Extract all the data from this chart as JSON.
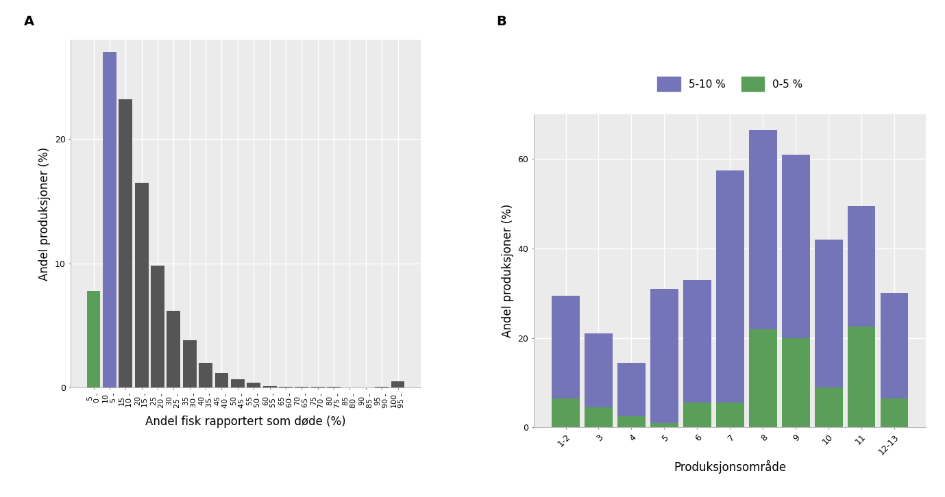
{
  "panel_A": {
    "tick_top": [
      "5",
      "10",
      "15",
      "20",
      "25",
      "30",
      "35",
      "40",
      "45",
      "50",
      "55",
      "60",
      "65",
      "70",
      "75",
      "80",
      "85",
      "90",
      "95",
      "100"
    ],
    "tick_bot": [
      "0 -",
      "5 -",
      "10 -",
      "15 -",
      "20 -",
      "25 -",
      "30 -",
      "35 -",
      "40 -",
      "45 -",
      "50 -",
      "55 -",
      "60 -",
      "65 -",
      "70 -",
      "75 -",
      "80 -",
      "85 -",
      "90 -",
      "95 -"
    ],
    "values": [
      7.8,
      27.0,
      23.2,
      16.5,
      9.8,
      6.2,
      3.8,
      2.0,
      1.2,
      0.7,
      0.4,
      0.15,
      0.07,
      0.05,
      0.05,
      0.05,
      0.0,
      0.0,
      0.05,
      0.5
    ],
    "colors": [
      "#5a9e5a",
      "#7474b8",
      "#555555",
      "#555555",
      "#555555",
      "#555555",
      "#555555",
      "#555555",
      "#555555",
      "#555555",
      "#555555",
      "#555555",
      "#555555",
      "#555555",
      "#555555",
      "#555555",
      "#555555",
      "#555555",
      "#555555",
      "#555555"
    ],
    "ylabel": "Andel produksjoner (%)",
    "xlabel": "Andel fisk rapportert som døde (%)",
    "ylim": [
      0,
      28
    ],
    "yticks": [
      0,
      10,
      20
    ]
  },
  "panel_B": {
    "categories": [
      "1-2",
      "3",
      "4",
      "5",
      "6",
      "7",
      "8",
      "9",
      "10",
      "11",
      "12-13"
    ],
    "values_green": [
      6.5,
      4.5,
      2.5,
      1.0,
      5.5,
      5.5,
      22.0,
      20.0,
      9.0,
      22.5,
      6.5
    ],
    "values_blue": [
      23.0,
      16.5,
      12.0,
      30.0,
      27.5,
      52.0,
      44.5,
      41.0,
      33.0,
      27.0,
      23.5
    ],
    "color_blue": "#7474b8",
    "color_green": "#5a9e5a",
    "ylabel": "Andel produksjoner (%)",
    "xlabel": "Produksjonsområde",
    "ylim": [
      0,
      70
    ],
    "yticks": [
      0,
      20,
      40,
      60
    ],
    "legend_blue": "5-10 %",
    "legend_green": "0-5 %"
  },
  "panel_bg": "#ebebeb",
  "grid_color": "white",
  "label_A": "A",
  "label_B": "B",
  "tick_fontsize": 9,
  "label_fontsize": 12,
  "panel_label_fontsize": 14
}
